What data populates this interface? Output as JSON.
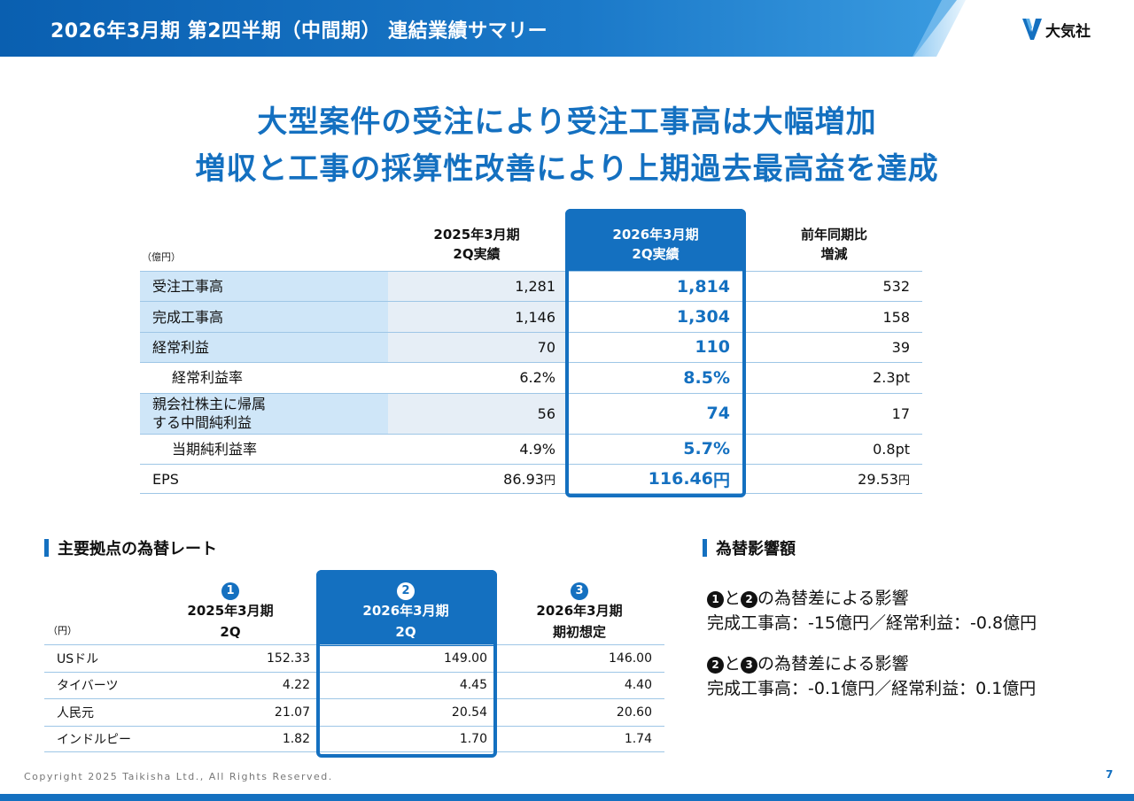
{
  "header": {
    "title": "2026年3月期 第2四半期（中間期） 連結業績サマリー",
    "logo_text": "大気社"
  },
  "headline": {
    "line1": "大型案件の受注により受注工事高は大幅増加",
    "line2": "増収と工事の採算性改善により上期過去最高益を達成"
  },
  "results_table": {
    "unit": "（億円）",
    "columns": [
      {
        "line1": "2025年3月期",
        "line2": "2Q実績"
      },
      {
        "line1": "2026年3月期",
        "line2": "2Q実績"
      },
      {
        "line1": "前年同期比",
        "line2": "増減"
      }
    ],
    "rows": [
      {
        "label": "受注工事高",
        "prev": "1,281",
        "curr": "1,814",
        "diff": "532"
      },
      {
        "label": "完成工事高",
        "prev": "1,146",
        "curr": "1,304",
        "diff": "158"
      },
      {
        "label": "経常利益",
        "prev": "70",
        "curr": "110",
        "diff": "39"
      },
      {
        "label": "経常利益率",
        "prev": "6.2%",
        "curr": "8.5%",
        "diff": "2.3pt"
      },
      {
        "label_line1": "親会社株主に帰属",
        "label_line2": "する中間純利益",
        "prev": "56",
        "curr": "74",
        "diff": "17"
      },
      {
        "label": "当期純利益率",
        "prev": "4.9%",
        "curr": "5.7%",
        "diff": "0.8pt"
      },
      {
        "label": "EPS",
        "prev": "86.93",
        "curr": "116.46",
        "diff": "29.53",
        "unit": "円"
      }
    ]
  },
  "fx_section": {
    "title": "主要拠点の為替レート",
    "unit": "（円）",
    "columns": [
      {
        "num": "1",
        "line1": "2025年3月期",
        "line2": "2Q"
      },
      {
        "num": "2",
        "line1": "2026年3月期",
        "line2": "2Q"
      },
      {
        "num": "3",
        "line1": "2026年3月期",
        "line2": "期初想定"
      }
    ],
    "rows": [
      {
        "label": "USドル",
        "v1": "152.33",
        "v2": "149.00",
        "v3": "146.00"
      },
      {
        "label": "タイバーツ",
        "v1": "4.22",
        "v2": "4.45",
        "v3": "4.40"
      },
      {
        "label": "人民元",
        "v1": "21.07",
        "v2": "20.54",
        "v3": "20.60"
      },
      {
        "label": "インドルピー",
        "v1": "1.82",
        "v2": "1.70",
        "v3": "1.74"
      }
    ]
  },
  "impact_section": {
    "title": "為替影響額",
    "item1": {
      "num_a": "1",
      "num_b": "2",
      "heading": "の為替差による影響",
      "join": "と",
      "detail": "完成工事高：-15億円／経常利益：-0.8億円"
    },
    "item2": {
      "num_a": "2",
      "num_b": "3",
      "heading": "の為替差による影響",
      "join": "と",
      "detail": "完成工事高：-0.1億円／経常利益：0.1億円"
    }
  },
  "footer": {
    "copyright": "Copyright 2025 Taikisha Ltd., All Rights Reserved.",
    "page": "7"
  },
  "colors": {
    "brand": "#1470c0",
    "label_bg": "#cfe6f8"
  }
}
